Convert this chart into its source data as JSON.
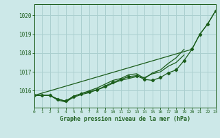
{
  "xlabel": "Graphe pression niveau de la mer (hPa)",
  "background_color": "#cce8e8",
  "grid_color": "#aacfcf",
  "line_color": "#1a5c1a",
  "x": [
    0,
    1,
    2,
    3,
    4,
    5,
    6,
    7,
    8,
    9,
    10,
    11,
    12,
    13,
    14,
    15,
    16,
    17,
    18,
    19,
    20,
    21,
    22,
    23
  ],
  "line1": [
    1015.75,
    1015.75,
    1015.75,
    1015.55,
    1015.45,
    1015.7,
    1015.85,
    1015.95,
    1016.05,
    1016.25,
    1016.45,
    1016.6,
    1016.75,
    1016.8,
    1016.6,
    1016.55,
    1016.7,
    1016.95,
    1017.1,
    1017.6,
    1018.2,
    1019.0,
    1019.55,
    1020.25
  ],
  "line2": [
    1015.75,
    1015.75,
    1015.75,
    1015.55,
    1015.45,
    1015.7,
    1015.85,
    1016.0,
    1016.15,
    1016.35,
    1016.55,
    1016.65,
    1016.85,
    1016.9,
    1016.65,
    1016.95,
    1017.1,
    1017.45,
    1017.75,
    1018.2,
    null,
    null,
    null,
    null
  ],
  "line3": [
    1015.75,
    1015.75,
    1015.75,
    1015.5,
    1015.4,
    1015.65,
    1015.8,
    1015.9,
    1016.05,
    1016.2,
    1016.4,
    1016.55,
    1016.65,
    1016.75,
    1016.7,
    1016.9,
    1017.0,
    1017.3,
    1017.5,
    1017.9,
    null,
    null,
    null,
    null
  ],
  "line4": [
    1015.75,
    null,
    null,
    null,
    null,
    null,
    null,
    null,
    null,
    null,
    null,
    null,
    null,
    null,
    null,
    null,
    null,
    null,
    null,
    null,
    1018.2,
    1019.0,
    1019.55,
    1020.25
  ],
  "ylim": [
    1015.1,
    1020.6
  ],
  "xlim": [
    0,
    23
  ],
  "yticks": [
    1016,
    1017,
    1018,
    1019,
    1020
  ],
  "xticks": [
    0,
    1,
    2,
    3,
    4,
    5,
    6,
    7,
    8,
    9,
    10,
    11,
    12,
    13,
    14,
    15,
    16,
    17,
    18,
    19,
    20,
    21,
    22,
    23
  ]
}
